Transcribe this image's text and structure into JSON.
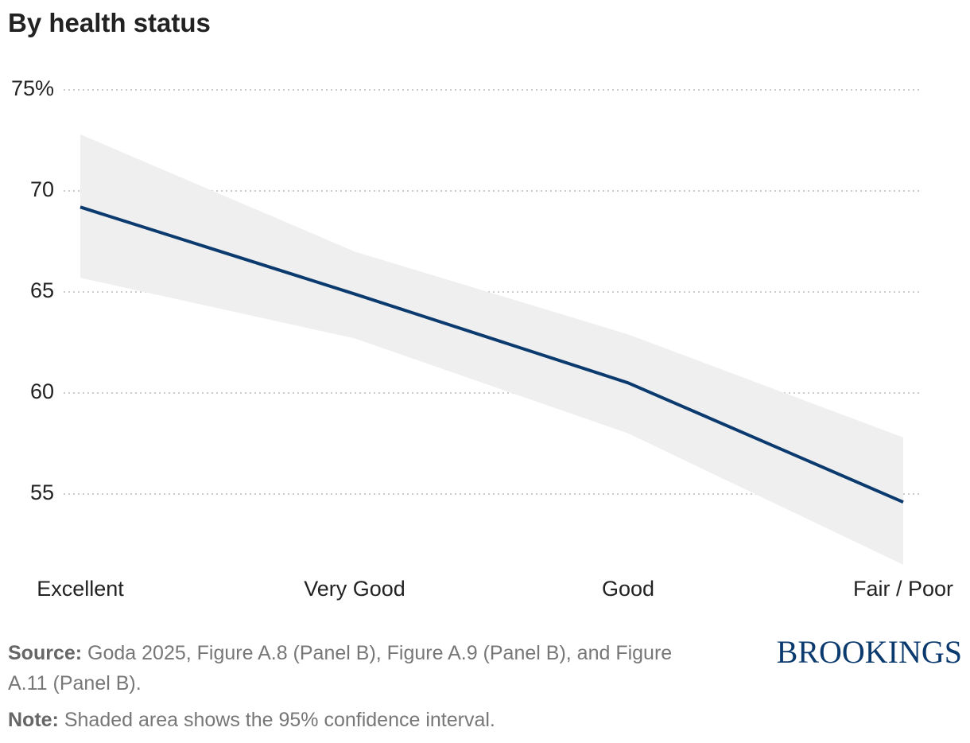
{
  "chart_data": {
    "type": "line",
    "title": "By health status",
    "categories": [
      "Excellent",
      "Very Good",
      "Good",
      "Fair / Poor"
    ],
    "values": [
      69.2,
      64.9,
      60.5,
      54.6
    ],
    "ci_upper": [
      72.8,
      67.0,
      62.9,
      57.8
    ],
    "ci_lower": [
      65.7,
      62.7,
      58.0,
      51.5
    ],
    "color": "#0b3a6e",
    "band_color": "#efefef",
    "ylim": [
      51,
      75
    ],
    "yticks": [
      55,
      60,
      65,
      70,
      {
        "value": 75,
        "label": "75%"
      }
    ],
    "grid": true,
    "source_label": "Source:",
    "source": "Goda 2025, Figure A.8 (Panel B), Figure A.9 (Panel B), and Figure A.11 (Panel B).",
    "note_label": "Note:",
    "note": "Shaded area shows the 95% confidence interval.",
    "logo": "BROOKINGS"
  }
}
